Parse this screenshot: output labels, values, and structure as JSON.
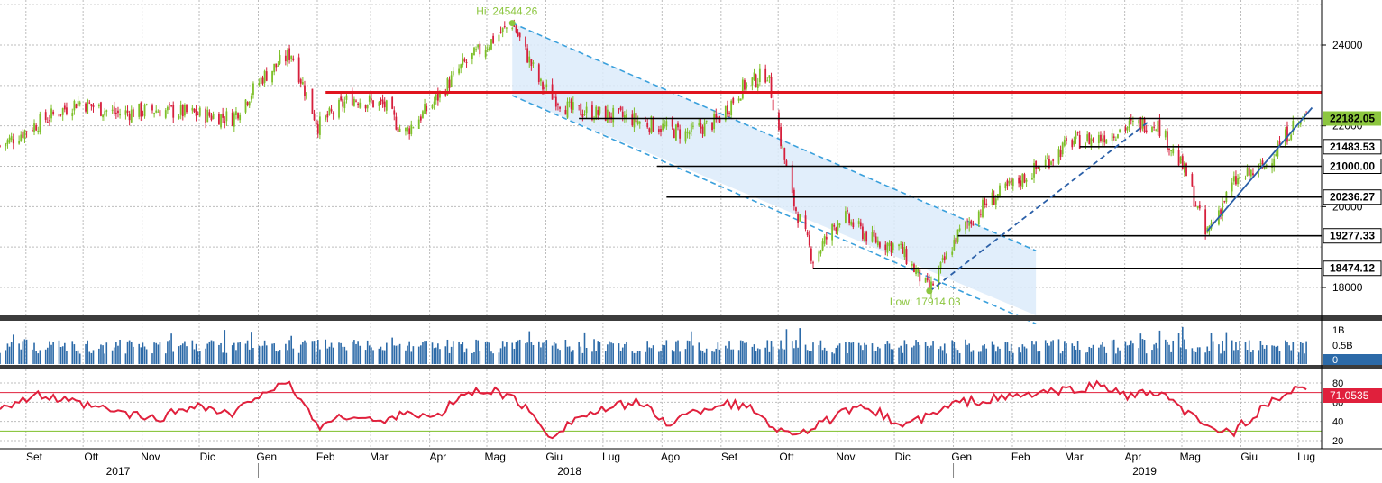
{
  "chart_data": [
    {
      "type": "line",
      "panel": "price",
      "title": "",
      "xlabel": "",
      "ylabel": "",
      "y_ticks": [
        18000,
        20000,
        22000,
        24000
      ],
      "ylim": [
        17300,
        25000
      ],
      "x_ticks": [
        "Set",
        "Ott",
        "Nov",
        "Dic",
        "Gen",
        "Feb",
        "Mar",
        "Apr",
        "Mag",
        "Giu",
        "Lug",
        "Ago",
        "Set",
        "Ott",
        "Nov",
        "Dic",
        "Gen",
        "Feb",
        "Mar",
        "Apr",
        "Mag",
        "Giu",
        "Lug"
      ],
      "years": [
        "2017",
        "2018",
        "2019"
      ],
      "grid": true,
      "series": [
        {
          "x": [
            "2017-08-25",
            "2017-09-15",
            "2017-10-05",
            "2017-10-25",
            "2017-11-15",
            "2017-12-05",
            "2017-12-25",
            "2018-01-10",
            "2018-01-25",
            "2018-02-08",
            "2018-02-25",
            "2018-03-15",
            "2018-03-25",
            "2018-04-10",
            "2018-04-25",
            "2018-05-21",
            "2018-06-05",
            "2018-06-20",
            "2018-07-05",
            "2018-07-20",
            "2018-08-05",
            "2018-08-20",
            "2018-09-05",
            "2018-09-20",
            "2018-10-02",
            "2018-10-15",
            "2018-10-26",
            "2018-11-10",
            "2018-11-25",
            "2018-12-10",
            "2018-12-26",
            "2019-01-10",
            "2019-01-25",
            "2019-02-10",
            "2019-02-25",
            "2019-03-10",
            "2019-03-25",
            "2019-04-10",
            "2019-04-24",
            "2019-05-10",
            "2019-05-20",
            "2019-06-04",
            "2019-06-20",
            "2019-07-05",
            "2019-07-12"
          ],
          "values": [
            21500,
            22100,
            22600,
            22300,
            22400,
            22300,
            22200,
            23200,
            23800,
            22000,
            22700,
            22500,
            21800,
            22600,
            23500,
            24544,
            23000,
            22400,
            22300,
            22200,
            22000,
            21800,
            22100,
            23000,
            23300,
            20200,
            18700,
            19800,
            19200,
            19000,
            17914,
            19300,
            20100,
            20600,
            21100,
            21600,
            21700,
            22000,
            22100,
            20800,
            19300,
            20600,
            21000,
            22000,
            22182
          ]
        }
      ],
      "horizontal_levels": [
        {
          "value": 22830,
          "color": "#e0141e"
        },
        {
          "value": 22182.05,
          "label": "22182.05",
          "highlight": true
        },
        {
          "value": 21483.53,
          "label": "21483.53"
        },
        {
          "value": 21000.0,
          "label": "21000.00"
        },
        {
          "value": 20236.27,
          "label": "20236.27"
        },
        {
          "value": 19277.33,
          "label": "19277.33"
        },
        {
          "value": 18474.12,
          "label": "18474.12"
        }
      ],
      "annotations": [
        {
          "text": "Hi: 24544.26",
          "date": "2018-05-21",
          "value": 24544.26
        },
        {
          "text": "Low: 17914.03",
          "date": "2018-12-26",
          "value": 17914.03
        }
      ],
      "channel": {
        "upper": {
          "from": [
            "2018-05-21",
            24544
          ],
          "to": [
            "2019-01-10",
            19750
          ]
        },
        "lower": {
          "from": [
            "2018-05-21",
            22750
          ],
          "to": [
            "2019-02-20",
            17100
          ]
        }
      },
      "trendlines": [
        {
          "from": [
            "2018-12-26",
            17900
          ],
          "to": [
            "2019-04-20",
            22100
          ],
          "style": "dashed"
        },
        {
          "from": [
            "2019-05-21",
            19400
          ],
          "to": [
            "2019-07-15",
            22450
          ],
          "style": "solid"
        }
      ],
      "colors": {
        "up": "#7dbf28",
        "down": "#d61f3c",
        "channel": "#3aa0dc",
        "channel_fill": "#dcebfa"
      }
    },
    {
      "type": "bar",
      "panel": "volume",
      "y_ticks": [
        "1B",
        "0.5B",
        "0"
      ],
      "last_value_label": "0",
      "color": "#2c6aa8"
    },
    {
      "type": "line",
      "panel": "rsi",
      "y_ticks": [
        20,
        40,
        60,
        80
      ],
      "ylim": [
        13,
        96
      ],
      "last_value_label": "71.0535",
      "reference_lines": [
        70,
        30
      ],
      "series": [
        {
          "x": [
            "2017-08-25",
            "2017-09-15",
            "2017-10-05",
            "2017-10-25",
            "2017-11-15",
            "2017-12-05",
            "2017-12-25",
            "2018-01-10",
            "2018-01-25",
            "2018-02-08",
            "2018-02-25",
            "2018-03-15",
            "2018-03-25",
            "2018-04-10",
            "2018-04-25",
            "2018-05-10",
            "2018-05-25",
            "2018-06-10",
            "2018-06-25",
            "2018-07-10",
            "2018-07-25",
            "2018-08-10",
            "2018-08-25",
            "2018-09-10",
            "2018-09-25",
            "2018-10-10",
            "2018-10-25",
            "2018-11-10",
            "2018-11-25",
            "2018-12-10",
            "2018-12-26",
            "2019-01-10",
            "2019-01-25",
            "2019-02-10",
            "2019-02-25",
            "2019-03-10",
            "2019-03-25",
            "2019-04-10",
            "2019-04-24",
            "2019-05-10",
            "2019-05-20",
            "2019-06-04",
            "2019-06-20",
            "2019-07-05",
            "2019-07-12"
          ],
          "values": [
            56,
            67,
            58,
            50,
            42,
            58,
            46,
            72,
            77,
            35,
            47,
            38,
            52,
            42,
            68,
            73,
            60,
            25,
            45,
            52,
            62,
            38,
            50,
            60,
            52,
            28,
            32,
            48,
            55,
            36,
            45,
            60,
            62,
            66,
            70,
            72,
            78,
            66,
            70,
            50,
            33,
            30,
            55,
            72,
            71
          ]
        }
      ],
      "color": "#e0203c"
    }
  ]
}
